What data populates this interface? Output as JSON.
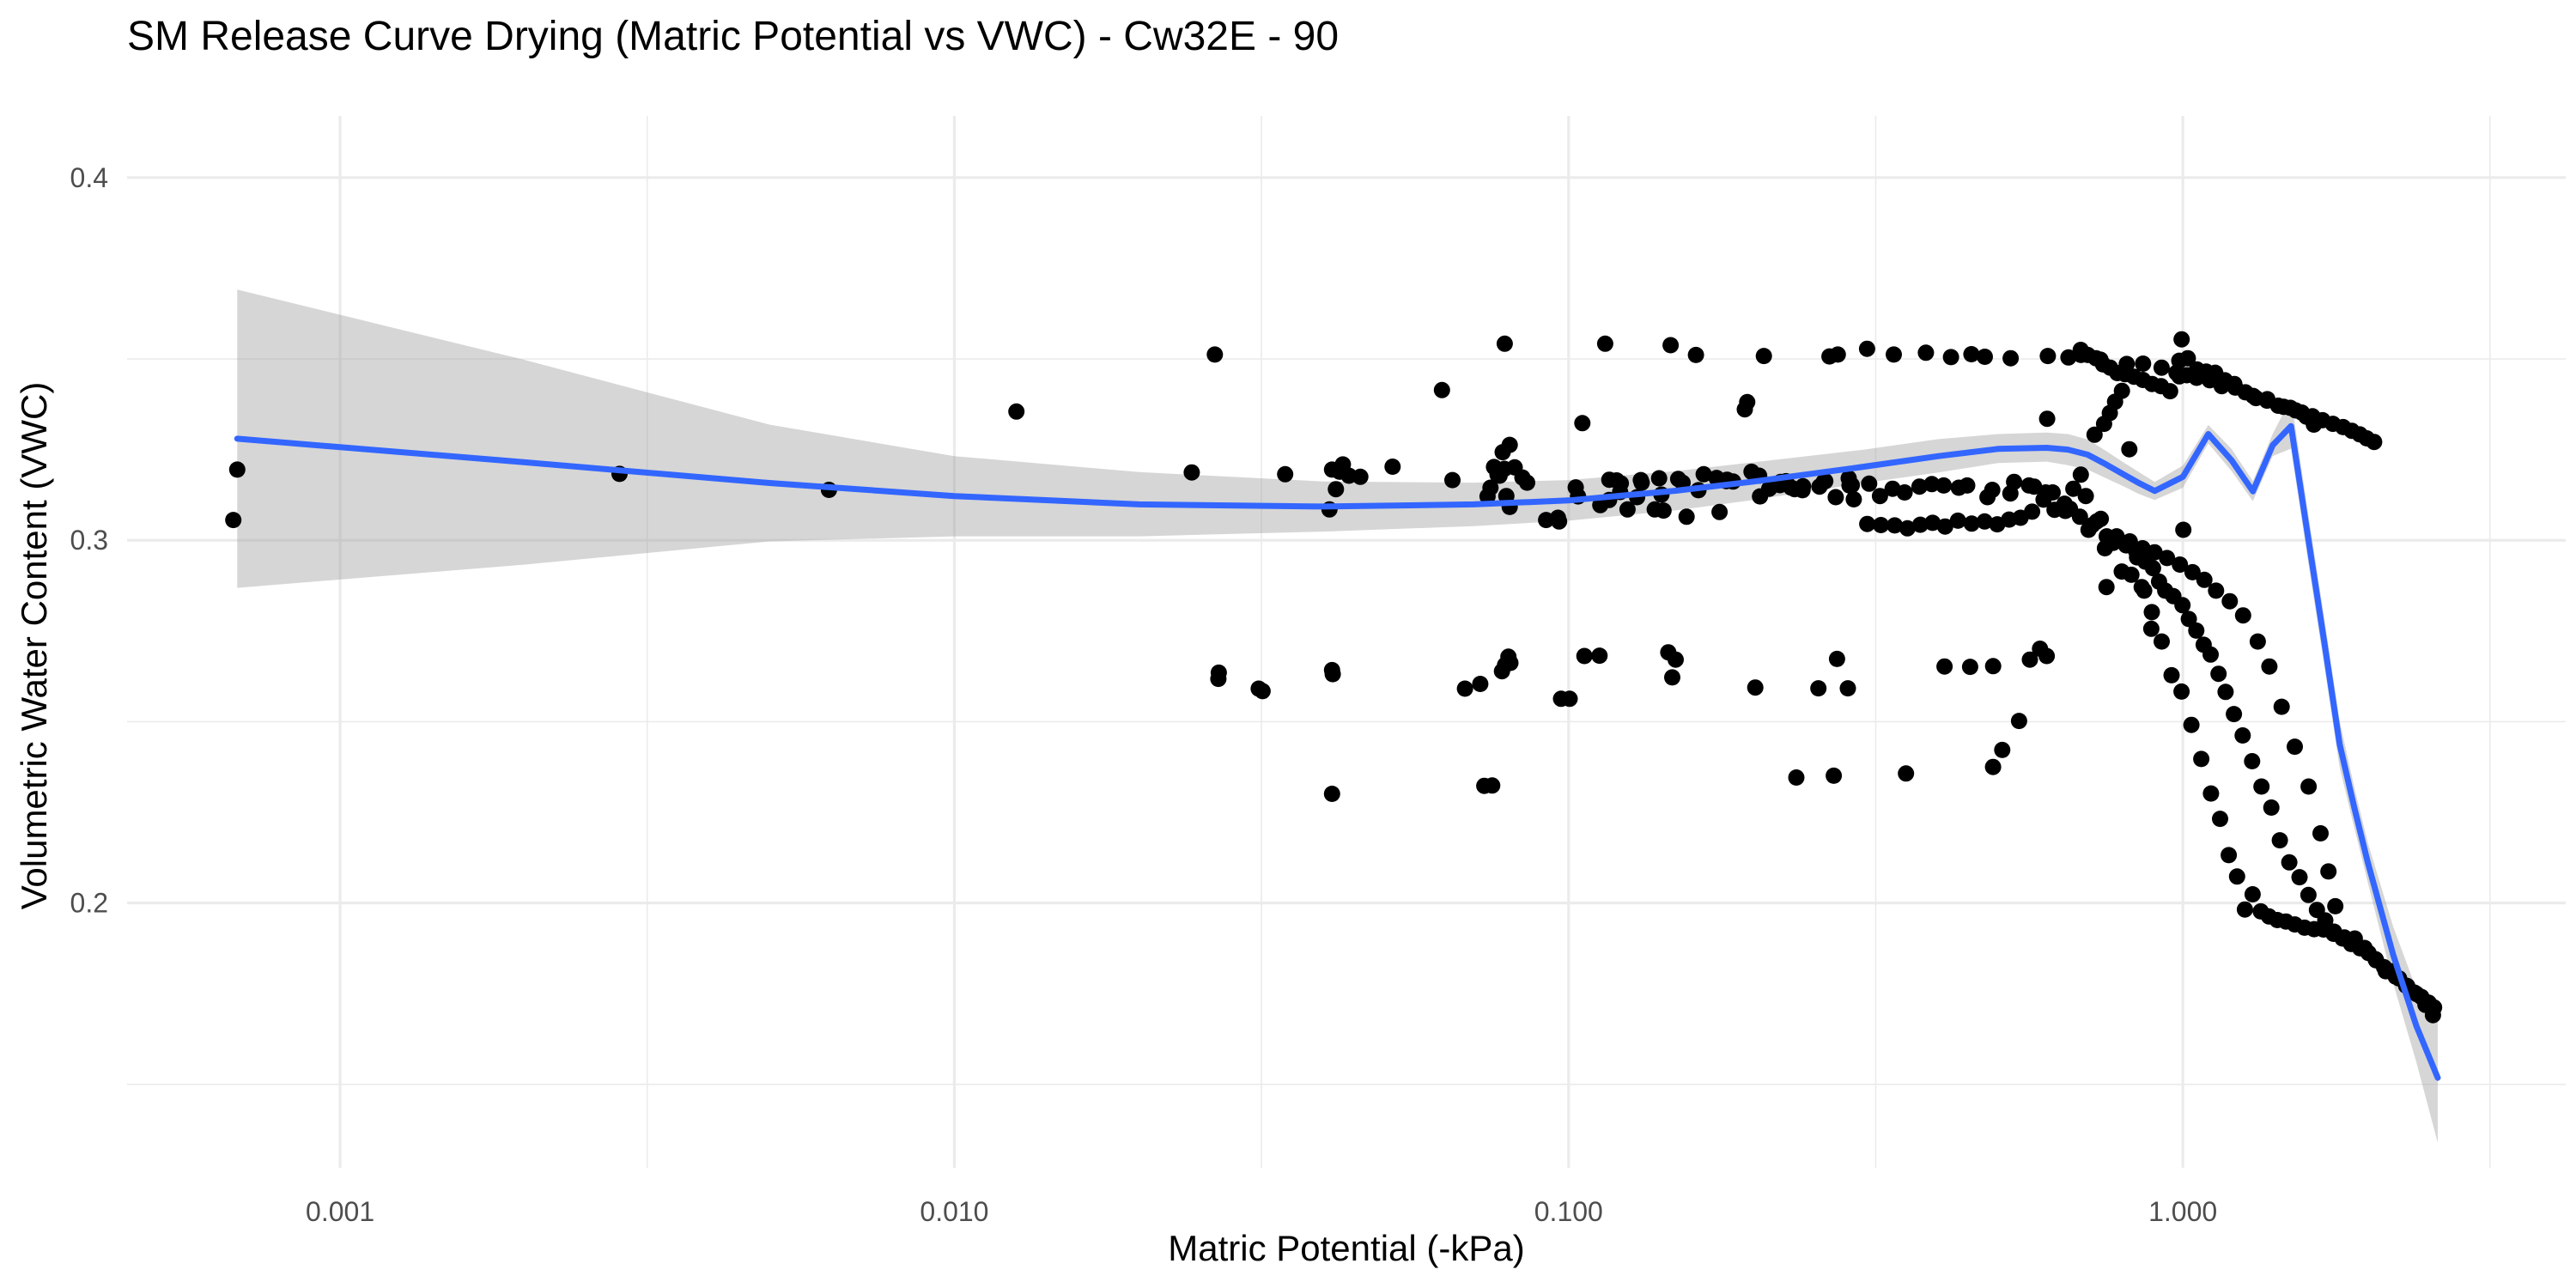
{
  "chart_data": {
    "type": "scatter",
    "title": "SM Release Curve Drying (Matric Potential vs VWC) - Cw32E - 90",
    "xlabel": "Matric Potential (-kPa)",
    "ylabel": "Volumetric Water Content (VWC)",
    "x_scale": "log10",
    "xlim": [
      0.00045,
      4.2
    ],
    "ylim": [
      0.127,
      0.417
    ],
    "x_ticks": [
      {
        "value": 0.001,
        "label": "0.001"
      },
      {
        "value": 0.01,
        "label": "0.010"
      },
      {
        "value": 0.1,
        "label": "0.100"
      },
      {
        "value": 1,
        "label": "1.000"
      }
    ],
    "x_minor_ticks": [
      0.0001,
      0.003162,
      0.03162,
      0.3162,
      3.162
    ],
    "y_ticks": [
      {
        "value": 0.2,
        "label": "0.2"
      },
      {
        "value": 0.3,
        "label": "0.3"
      },
      {
        "value": 0.4,
        "label": "0.4"
      }
    ],
    "y_minor_ticks": [
      0.15,
      0.25,
      0.35
    ],
    "grid": true,
    "colors": {
      "points": "#000000",
      "smooth_line": "#3366FF",
      "confidence_band": "#999999",
      "grid": "#EBEBEB",
      "tick_label": "#4D4D4D"
    },
    "scatter": {
      "x": [
        0.00068,
        0.00067,
        0.00285,
        0.00625,
        0.01262,
        0.02435,
        0.02655,
        0.02695,
        0.03175,
        0.03456,
        0.0408,
        0.0412,
        0.0418,
        0.0413,
        0.0429,
        0.0424,
        0.0439,
        0.0458,
        0.0517,
        0.0622,
        0.0647,
        0.0718,
        0.0756,
        0.0772,
        0.0792,
        0.0781,
        0.0787,
        0.0802,
        0.0786,
        0.0798,
        0.0817,
        0.0841,
        0.0856,
        0.0965,
        0.1053,
        0.1061,
        0.1147,
        0.1165,
        0.1216,
        0.1247,
        0.1466,
        0.1612,
        0.1811,
        0.1936,
        0.2079,
        0.2215,
        0.2334,
        0.2659,
        0.2743,
        0.2912,
        0.3061,
        0.3384,
        0.3816,
        0.4193,
        0.4526,
        0.4759,
        0.5243,
        0.6028,
        0.6513,
        0.6825,
        0.7342,
        0.8104,
        0.8615,
        0.9235,
        0.9764,
        0.9954,
        0.9869,
        1.0146,
        1.0529,
        1.1063,
        1.1287,
        1.1569,
        1.2129,
        1.3019,
        1.3722,
        1.4593,
        1.5265,
        1.5885,
        1.6339,
        0.1197,
        0.1311,
        0.1404,
        0.1533,
        0.1659,
        0.1806,
        0.2043,
        0.2208,
        0.2408,
        0.2617,
        0.2858,
        0.3085,
        0.3368,
        0.3725,
        0.4079,
        0.4456,
        0.4894,
        0.5311,
        0.5726,
        0.6138,
        0.6551,
        0.6949,
        0.7353,
        0.7801,
        0.8196,
        0.8598,
        0.8995,
        0.9422,
        0.9889,
        1.0369,
        1.0841,
        1.1325,
        1.1925,
        1.2533,
        1.3242,
        1.3832,
        1.4483,
        1.5212,
        1.6021,
        1.6754,
        1.7259,
        1.7709,
        0.1027,
        0.1126,
        0.1213,
        0.1315,
        0.1416,
        0.1508,
        0.1627,
        0.1741,
        0.1853,
        0.1985,
        0.2121,
        0.2259,
        0.2403,
        0.2561,
        0.2722,
        0.2891,
        0.3063,
        0.3224,
        0.3396,
        0.3561,
        0.3738,
        0.3914,
        0.4102,
        0.4304,
        0.4531,
        0.4757,
        0.4987,
        0.5213,
        0.5442,
        0.5683,
        0.5932,
        0.6182,
        0.6419,
        0.6632,
        0.6821,
        0.7022,
        0.7239,
        0.7466,
        0.7701,
        0.7953,
        0.8246,
        0.8571,
        0.8902,
        0.9237,
        0.9584,
        0.9949,
        1.0325,
        1.0713,
        1.1112,
        1.1498,
        1.1879,
        1.2254,
        1.2618,
        1.2991,
        1.3392,
        1.3812,
        1.4249,
        1.4715,
        1.5219,
        1.5779,
        1.6353,
        1.6943,
        1.7596,
        1.8321,
        1.9049,
        1.9761,
        2.0597,
        2.1395,
        2.2206,
        2.3087,
        2.4021,
        2.4826,
        2.5537,
        0.0788,
        0.0779,
        0.0804,
        0.1004,
        0.1123,
        0.1453,
        0.1494,
        0.1475,
        0.2013,
        0.2735,
        0.2848,
        0.4093,
        0.4505,
        0.4911,
        0.5636,
        0.5854,
        0.6002,
        0.0412,
        0.0412,
        0.0269,
        0.0313,
        0.0678,
        0.0972,
        0.0729,
        0.0751,
        0.2348,
        0.2702,
        0.3542,
        0.4909,
        0.5081,
        0.0738,
        0.0746,
        0.0766,
        0.0802,
        0.0919,
        0.0961,
        0.1036,
        0.1164,
        0.1293,
        0.1381,
        0.1427,
        0.1556,
        0.1761,
        0.2049,
        0.2305,
        0.2602,
        0.2866,
        0.3213,
        0.3524,
        0.3902,
        0.4318,
        0.4807,
        0.5238,
        0.5618,
        0.5982,
        0.6437,
        0.6799,
        0.7122,
        0.7518,
        0.7766,
        0.8086,
        0.8388,
        0.8689,
        0.8941,
        0.9144,
        0.9361,
        0.9651,
        0.9986,
        1.0227,
        1.0516,
        1.0811,
        1.1097,
        1.1432,
        1.1735,
        1.2107,
        1.2512,
        1.2965,
        1.3425,
        1.3931,
        1.4383,
        1.4905,
        1.5484,
        1.6011,
        1.6532,
        1.7056,
        1.7621,
        1.8199,
        1.8791,
        1.9436,
        2.0061,
        2.0635,
        2.1252,
        2.1824,
        2.2497,
        2.3189,
        2.3826,
        2.4448,
        2.5135,
        2.5638,
        0.6819,
        0.7002,
        0.7219,
        0.7415,
        0.7614,
        0.7823,
        0.8053,
        0.8324,
        0.8612,
        0.8906,
        0.9212,
        0.9532,
        0.9867,
        1.0187,
        1.0542,
        1.0918,
        1.1296,
        1.1705,
        1.2173,
        1.2642,
        1.3154,
        1.3709,
        1.4296,
        1.4966,
        1.5621,
        1.6256,
        1.6881,
        1.7549,
        1.8233,
        1.8836,
        1.9412,
        1.9921,
        2.0482,
        0.7181,
        0.7444,
        0.7605,
        0.7756,
        0.7959,
        0.8182,
        0.8422,
        0.8651,
        0.8883,
        1.0019,
        0.6012,
        0.7511,
        0.5412,
        0.1953,
        0.2551
      ],
      "y": [
        0.3195,
        0.3056,
        0.3183,
        0.3139,
        0.3355,
        0.3187,
        0.3512,
        0.2635,
        0.2584,
        0.3182,
        0.3085,
        0.3195,
        0.3141,
        0.2631,
        0.3209,
        0.3189,
        0.3178,
        0.3175,
        0.3203,
        0.3414,
        0.3166,
        0.2604,
        0.3202,
        0.3178,
        0.3122,
        0.3243,
        0.3542,
        0.3263,
        0.3197,
        0.2679,
        0.3201,
        0.3173,
        0.3159,
        0.3052,
        0.3323,
        0.2681,
        0.3542,
        0.3167,
        0.3157,
        0.3085,
        0.3538,
        0.3511,
        0.3167,
        0.3361,
        0.3508,
        0.3161,
        0.3141,
        0.3507,
        0.3512,
        0.3113,
        0.3528,
        0.3512,
        0.3517,
        0.3505,
        0.3513,
        0.3506,
        0.3502,
        0.3508,
        0.3504,
        0.3511,
        0.3498,
        0.3486,
        0.3487,
        0.3476,
        0.3462,
        0.3554,
        0.3452,
        0.3455,
        0.3448,
        0.3441,
        0.3462,
        0.3425,
        0.3431,
        0.3398,
        0.3389,
        0.3368,
        0.3358,
        0.3341,
        0.3319,
        0.3165,
        0.3166,
        0.3171,
        0.3159,
        0.3182,
        0.3163,
        0.3178,
        0.3152,
        0.3149,
        0.3163,
        0.3171,
        0.3156,
        0.3142,
        0.3148,
        0.3151,
        0.3151,
        0.3139,
        0.3161,
        0.3148,
        0.3132,
        0.3087,
        0.3122,
        0.3059,
        0.3011,
        0.2997,
        0.2978,
        0.2967,
        0.2951,
        0.2933,
        0.2912,
        0.2891,
        0.2861,
        0.2832,
        0.2793,
        0.2721,
        0.2652,
        0.2541,
        0.2431,
        0.2321,
        0.2192,
        0.2087,
        0.1991,
        0.3146,
        0.3097,
        0.3133,
        0.3159,
        0.3126,
        0.3169,
        0.3138,
        0.3172,
        0.3162,
        0.3189,
        0.3142,
        0.3163,
        0.3138,
        0.3148,
        0.3119,
        0.3152,
        0.3045,
        0.3042,
        0.3041,
        0.3033,
        0.3043,
        0.3048,
        0.3038,
        0.3054,
        0.3046,
        0.3052,
        0.3044,
        0.3057,
        0.3062,
        0.3079,
        0.3112,
        0.3084,
        0.3101,
        0.3142,
        0.3181,
        0.3029,
        0.3052,
        0.2978,
        0.2993,
        0.2914,
        0.2905,
        0.2871,
        0.2802,
        0.2721,
        0.2628,
        0.2583,
        0.2491,
        0.2397,
        0.2302,
        0.2232,
        0.2132,
        0.2073,
        0.1982,
        0.2024,
        0.1977,
        0.1963,
        0.1953,
        0.1949,
        0.1941,
        0.1932,
        0.1928,
        0.1927,
        0.1915,
        0.1905,
        0.1902,
        0.1876,
        0.1845,
        0.1812,
        0.1797,
        0.1772,
        0.1749,
        0.1719,
        0.1691,
        0.2656,
        0.2639,
        0.2662,
        0.2563,
        0.2682,
        0.2691,
        0.2671,
        0.2622,
        0.2594,
        0.2673,
        0.2592,
        0.2652,
        0.2651,
        0.2653,
        0.2671,
        0.2701,
        0.2681,
        0.2301,
        0.2642,
        0.2618,
        0.2591,
        0.2591,
        0.2563,
        0.2323,
        0.2324,
        0.2346,
        0.2351,
        0.2357,
        0.2375,
        0.2422,
        0.3121,
        0.3145,
        0.3181,
        0.3092,
        0.3056,
        0.3062,
        0.3121,
        0.3111,
        0.3119,
        0.3085,
        0.3082,
        0.3065,
        0.3078,
        0.3121,
        0.3145,
        0.3161,
        0.3151,
        0.3122,
        0.3132,
        0.3155,
        0.3145,
        0.3119,
        0.3129,
        0.3151,
        0.3132,
        0.3081,
        0.3065,
        0.3042,
        0.3011,
        0.3002,
        0.2986,
        0.2971,
        0.2941,
        0.2923,
        0.2886,
        0.2861,
        0.2846,
        0.2821,
        0.2783,
        0.2751,
        0.2712,
        0.2685,
        0.2632,
        0.2582,
        0.2521,
        0.2462,
        0.2391,
        0.2321,
        0.2263,
        0.2173,
        0.2112,
        0.2071,
        0.2022,
        0.1981,
        0.1952,
        0.1921,
        0.1902,
        0.1887,
        0.1875,
        0.1862,
        0.1842,
        0.1823,
        0.1812,
        0.1792,
        0.1771,
        0.1753,
        0.1741,
        0.1725,
        0.1712,
        0.3525,
        0.3511,
        0.3502,
        0.3485,
        0.3476,
        0.3461,
        0.3458,
        0.3451,
        0.3442,
        0.3431,
        0.3425,
        0.3411,
        0.3495,
        0.3502,
        0.3471,
        0.3465,
        0.3451,
        0.3441,
        0.3421,
        0.3408,
        0.3392,
        0.3385,
        0.3371,
        0.3365,
        0.3352,
        0.3342,
        0.3331,
        0.3321,
        0.3312,
        0.3302,
        0.3292,
        0.3281,
        0.3271,
        0.3291,
        0.3321,
        0.3351,
        0.3382,
        0.3412,
        0.3251,
        0.2953,
        0.2861,
        0.2756,
        0.3029,
        0.3335,
        0.2871,
        0.2502,
        0.3381,
        0.2592
      ],
      "point_color": "#000000"
    },
    "series": [
      {
        "x": [
          0.00068,
          0.002,
          0.005,
          0.01,
          0.02,
          0.04,
          0.07,
          0.1,
          0.15,
          0.2,
          0.3,
          0.4,
          0.5,
          0.6,
          0.65,
          0.7,
          0.75,
          0.8,
          0.85,
          0.9,
          1.0,
          1.1,
          1.2,
          1.3,
          1.4,
          1.5,
          1.6,
          1.7,
          1.8,
          1.9,
          2.0,
          2.2,
          2.4,
          2.6
        ],
        "y": [
          0.328,
          0.3215,
          0.3158,
          0.3122,
          0.3099,
          0.3093,
          0.3099,
          0.311,
          0.3137,
          0.3162,
          0.3202,
          0.3232,
          0.3252,
          0.3255,
          0.325,
          0.3236,
          0.3209,
          0.3182,
          0.3157,
          0.3136,
          0.3175,
          0.3293,
          0.3221,
          0.3135,
          0.3262,
          0.3315,
          0.3005,
          0.2717,
          0.2437,
          0.2265,
          0.2112,
          0.1857,
          0.1661,
          0.1518
        ],
        "y_upper": [
          0.3691,
          0.3497,
          0.3319,
          0.3232,
          0.3188,
          0.3162,
          0.3159,
          0.3166,
          0.3191,
          0.3215,
          0.3249,
          0.3279,
          0.3293,
          0.3297,
          0.3293,
          0.3278,
          0.3246,
          0.3215,
          0.3187,
          0.3161,
          0.3206,
          0.3318,
          0.3252,
          0.3163,
          0.3293,
          0.3391,
          0.3072,
          0.2783,
          0.2502,
          0.2321,
          0.2167,
          0.1935,
          0.1762,
          0.1697
        ],
        "y_lower": [
          0.2869,
          0.2933,
          0.2997,
          0.3011,
          0.3011,
          0.3024,
          0.3039,
          0.3054,
          0.3083,
          0.3111,
          0.3157,
          0.3187,
          0.3213,
          0.3217,
          0.3207,
          0.3195,
          0.3171,
          0.3149,
          0.3127,
          0.3111,
          0.3145,
          0.3267,
          0.3191,
          0.3108,
          0.3232,
          0.3253,
          0.2938,
          0.2652,
          0.2373,
          0.2209,
          0.2057,
          0.1779,
          0.1561,
          0.1339
        ],
        "line_color": "#3366FF",
        "band_color": "#999999"
      }
    ]
  }
}
